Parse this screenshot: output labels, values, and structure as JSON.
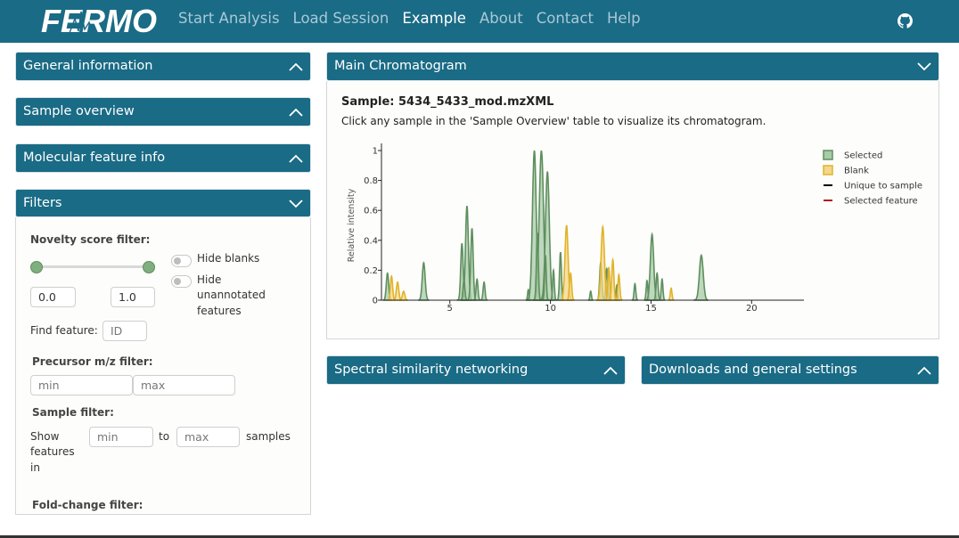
{
  "navbar": {
    "brand": "FERMO",
    "links": [
      "Start Analysis",
      "Load Session",
      "Example",
      "About",
      "Contact",
      "Help"
    ],
    "active": "Example",
    "github_icon": "github-icon"
  },
  "left_panels": {
    "general": "General information",
    "sample_overview": "Sample overview",
    "molecular": "Molecular feature info",
    "filters": "Filters"
  },
  "filters": {
    "novelty_label": "Novelty score filter:",
    "novelty_min": "0.0",
    "novelty_max": "1.0",
    "hide_blanks": "Hide blanks",
    "hide_unannotated_line1": "Hide",
    "hide_unannotated_line2": "unannotated",
    "hide_unannotated_line3": "features",
    "find_feature_label": "Find feature:",
    "find_feature_placeholder": "ID",
    "precursor_label": "Precursor m/z filter:",
    "precursor_min_placeholder": "min",
    "precursor_max_placeholder": "max",
    "sample_filter_label": "Sample filter:",
    "show_line1": "Show",
    "show_line2": "features",
    "show_line3": "in",
    "sample_min_placeholder": "min",
    "to_label": "to",
    "sample_max_placeholder": "max",
    "samples_label": "samples",
    "fold_change_label": "Fold-change filter:"
  },
  "main": {
    "chromatogram_title": "Main Chromatogram",
    "sample_label": "Sample: 5434_5433_mod.mzXML",
    "hint": "Click any sample in the 'Sample Overview' table to visualize its chromatogram.",
    "spectral_title": "Spectral similarity networking",
    "downloads_title": "Downloads and general settings"
  },
  "chart_data": {
    "type": "area",
    "ylabel": "Relative intensity",
    "xlabel": "",
    "xlim": [
      1.6,
      22.6
    ],
    "ylim": [
      0,
      1.0
    ],
    "x_ticks": [
      5,
      10,
      15,
      20
    ],
    "y_ticks": [
      0,
      0.2,
      0.4,
      0.6,
      0.8,
      1
    ],
    "legend": [
      "Selected",
      "Blank",
      "Unique to sample",
      "Selected feature"
    ],
    "legend_position": "right",
    "series": [
      {
        "name": "Selected",
        "color": "#5f8f5f",
        "fill": "#a8cba8",
        "peaks": [
          [
            1.9,
            0.18,
            0.1
          ],
          [
            3.7,
            0.25,
            0.12
          ],
          [
            5.6,
            0.38,
            0.1
          ],
          [
            5.85,
            0.63,
            0.12
          ],
          [
            6.1,
            0.48,
            0.1
          ],
          [
            5.7,
            0.13,
            0.08
          ],
          [
            6.35,
            0.14,
            0.08
          ],
          [
            6.7,
            0.12,
            0.08
          ],
          [
            8.9,
            0.07,
            0.06
          ],
          [
            9.2,
            1.0,
            0.16
          ],
          [
            9.55,
            1.0,
            0.18
          ],
          [
            9.85,
            0.86,
            0.16
          ],
          [
            9.35,
            0.45,
            0.08
          ],
          [
            9.75,
            0.3,
            0.07
          ],
          [
            10.15,
            0.2,
            0.07
          ],
          [
            10.5,
            0.32,
            0.08
          ],
          [
            12.0,
            0.06,
            0.06
          ],
          [
            12.5,
            0.25,
            0.09
          ],
          [
            12.8,
            0.21,
            0.08
          ],
          [
            13.3,
            0.1,
            0.06
          ],
          [
            14.2,
            0.11,
            0.07
          ],
          [
            14.8,
            0.13,
            0.07
          ],
          [
            15.05,
            0.44,
            0.14
          ],
          [
            15.3,
            0.18,
            0.08
          ],
          [
            15.55,
            0.14,
            0.07
          ],
          [
            17.5,
            0.3,
            0.16
          ]
        ]
      },
      {
        "name": "Blank",
        "color": "#e0b32a",
        "fill": "#f3d78a",
        "peaks": [
          [
            2.1,
            0.16,
            0.09
          ],
          [
            2.4,
            0.12,
            0.1
          ],
          [
            2.7,
            0.06,
            0.1
          ],
          [
            10.8,
            0.5,
            0.13
          ],
          [
            11.0,
            0.18,
            0.09
          ],
          [
            12.6,
            0.49,
            0.14
          ],
          [
            12.9,
            0.22,
            0.08
          ],
          [
            13.1,
            0.27,
            0.09
          ],
          [
            13.4,
            0.17,
            0.08
          ],
          [
            16.0,
            0.08,
            0.07
          ]
        ]
      }
    ]
  }
}
